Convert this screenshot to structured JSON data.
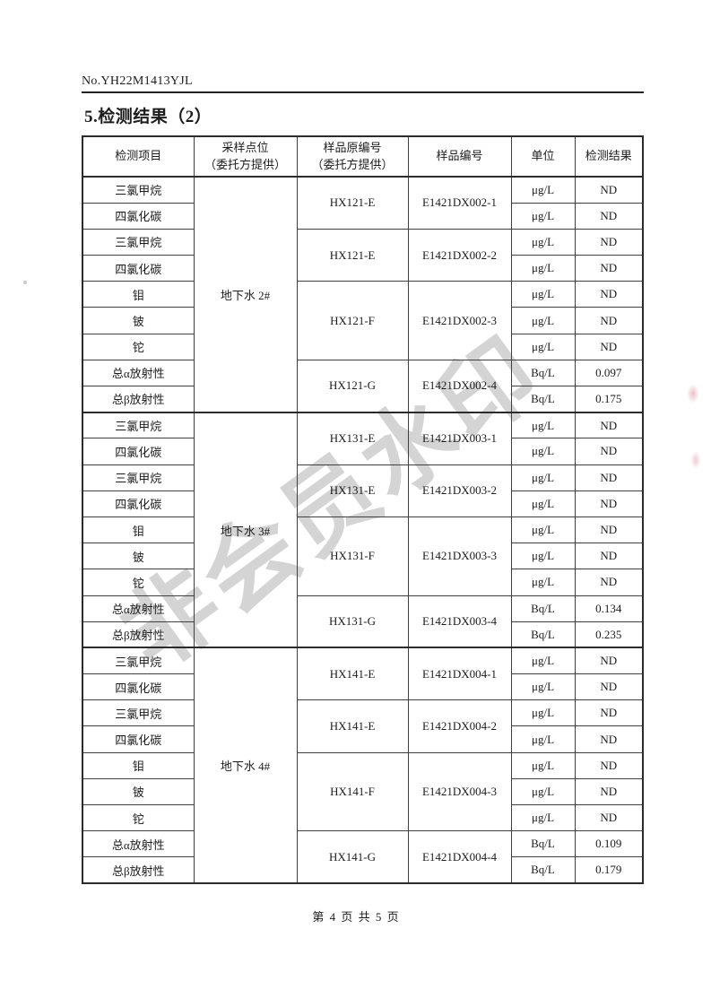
{
  "page": {
    "report_no": "No.YH22M1413YJL",
    "title": "5.检测结果（2）",
    "watermark": "非会员水印",
    "footer": "第 4 页 共 5 页"
  },
  "table": {
    "headers": [
      "检测项目",
      "采样点位\n（委托方提供）",
      "样品原编号\n（委托方提供）",
      "样品编号",
      "单位",
      "检测结果"
    ],
    "groups": [
      {
        "location": "地下水 2#",
        "subgroups": [
          {
            "orig_id": "HX121-E",
            "sample_id": "E1421DX002-1",
            "rows": [
              {
                "item": "三氯甲烷",
                "unit": "μg/L",
                "result": "ND"
              },
              {
                "item": "四氯化碳",
                "unit": "μg/L",
                "result": "ND"
              }
            ]
          },
          {
            "orig_id": "HX121-E",
            "sample_id": "E1421DX002-2",
            "rows": [
              {
                "item": "三氯甲烷",
                "unit": "μg/L",
                "result": "ND"
              },
              {
                "item": "四氯化碳",
                "unit": "μg/L",
                "result": "ND"
              }
            ]
          },
          {
            "orig_id": "HX121-F",
            "sample_id": "E1421DX002-3",
            "rows": [
              {
                "item": "钼",
                "unit": "μg/L",
                "result": "ND"
              },
              {
                "item": "铍",
                "unit": "μg/L",
                "result": "ND"
              },
              {
                "item": "铊",
                "unit": "μg/L",
                "result": "ND"
              }
            ]
          },
          {
            "orig_id": "HX121-G",
            "sample_id": "E1421DX002-4",
            "rows": [
              {
                "item": "总α放射性",
                "unit": "Bq/L",
                "result": "0.097"
              },
              {
                "item": "总β放射性",
                "unit": "Bq/L",
                "result": "0.175"
              }
            ]
          }
        ]
      },
      {
        "location": "地下水 3#",
        "subgroups": [
          {
            "orig_id": "HX131-E",
            "sample_id": "E1421DX003-1",
            "rows": [
              {
                "item": "三氯甲烷",
                "unit": "μg/L",
                "result": "ND"
              },
              {
                "item": "四氯化碳",
                "unit": "μg/L",
                "result": "ND"
              }
            ]
          },
          {
            "orig_id": "HX131-E",
            "sample_id": "E1421DX003-2",
            "rows": [
              {
                "item": "三氯甲烷",
                "unit": "μg/L",
                "result": "ND"
              },
              {
                "item": "四氯化碳",
                "unit": "μg/L",
                "result": "ND"
              }
            ]
          },
          {
            "orig_id": "HX131-F",
            "sample_id": "E1421DX003-3",
            "rows": [
              {
                "item": "钼",
                "unit": "μg/L",
                "result": "ND"
              },
              {
                "item": "铍",
                "unit": "μg/L",
                "result": "ND"
              },
              {
                "item": "铊",
                "unit": "μg/L",
                "result": "ND"
              }
            ]
          },
          {
            "orig_id": "HX131-G",
            "sample_id": "E1421DX003-4",
            "rows": [
              {
                "item": "总α放射性",
                "unit": "Bq/L",
                "result": "0.134"
              },
              {
                "item": "总β放射性",
                "unit": "Bq/L",
                "result": "0.235"
              }
            ]
          }
        ]
      },
      {
        "location": "地下水 4#",
        "subgroups": [
          {
            "orig_id": "HX141-E",
            "sample_id": "E1421DX004-1",
            "rows": [
              {
                "item": "三氯甲烷",
                "unit": "μg/L",
                "result": "ND"
              },
              {
                "item": "四氯化碳",
                "unit": "μg/L",
                "result": "ND"
              }
            ]
          },
          {
            "orig_id": "HX141-E",
            "sample_id": "E1421DX004-2",
            "rows": [
              {
                "item": "三氯甲烷",
                "unit": "μg/L",
                "result": "ND"
              },
              {
                "item": "四氯化碳",
                "unit": "μg/L",
                "result": "ND"
              }
            ]
          },
          {
            "orig_id": "HX141-F",
            "sample_id": "E1421DX004-3",
            "rows": [
              {
                "item": "钼",
                "unit": "μg/L",
                "result": "ND"
              },
              {
                "item": "铍",
                "unit": "μg/L",
                "result": "ND"
              },
              {
                "item": "铊",
                "unit": "μg/L",
                "result": "ND"
              }
            ]
          },
          {
            "orig_id": "HX141-G",
            "sample_id": "E1421DX004-4",
            "rows": [
              {
                "item": "总α放射性",
                "unit": "Bq/L",
                "result": "0.109"
              },
              {
                "item": "总β放射性",
                "unit": "Bq/L",
                "result": "0.179"
              }
            ]
          }
        ]
      }
    ]
  }
}
